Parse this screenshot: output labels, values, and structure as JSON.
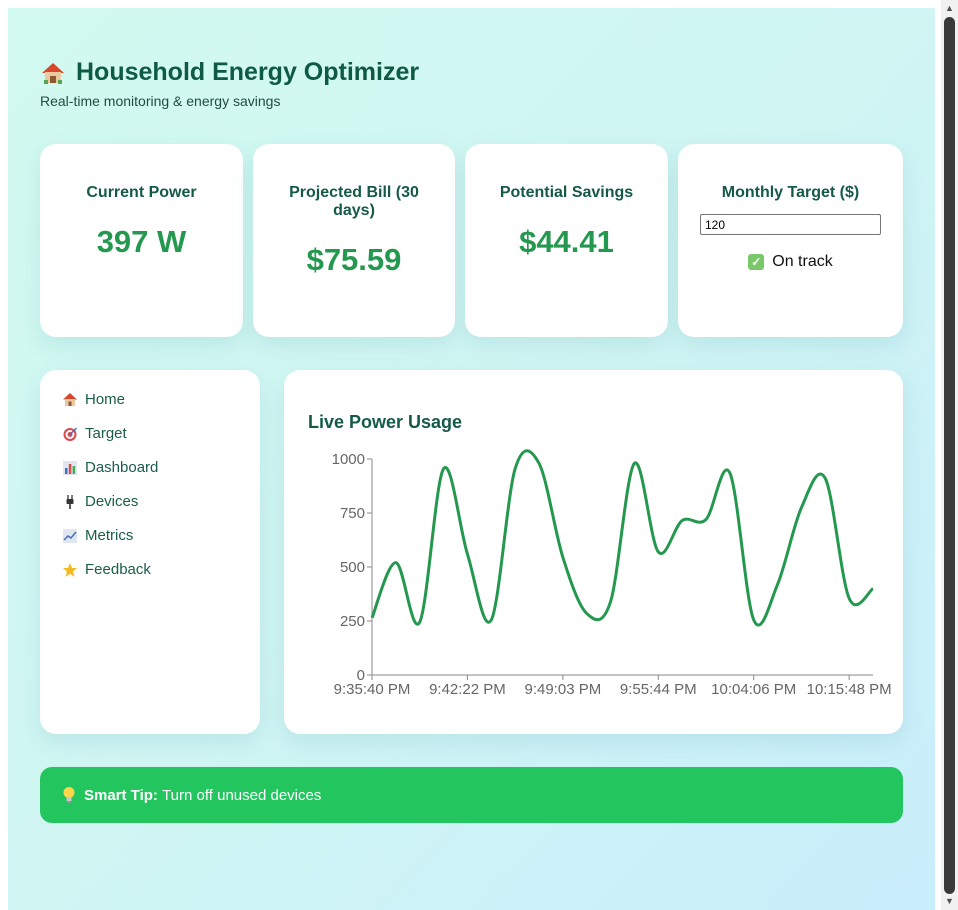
{
  "header": {
    "title": "Household Energy Optimizer",
    "subtitle": "Real-time monitoring & energy savings"
  },
  "stats": {
    "current_power": {
      "label": "Current Power",
      "value": "397 W"
    },
    "projected_bill": {
      "label": "Projected Bill (30 days)",
      "value": "$75.59"
    },
    "potential_savings": {
      "label": "Potential Savings",
      "value": "$44.41"
    },
    "monthly_target": {
      "label": "Monthly Target ($)",
      "value": "120",
      "status": "On track"
    }
  },
  "sidebar": {
    "items": [
      {
        "label": "Home",
        "icon": "house-icon"
      },
      {
        "label": "Target",
        "icon": "target-icon"
      },
      {
        "label": "Dashboard",
        "icon": "bar-chart-icon"
      },
      {
        "label": "Devices",
        "icon": "plug-icon"
      },
      {
        "label": "Metrics",
        "icon": "line-chart-icon"
      },
      {
        "label": "Feedback",
        "icon": "star-icon"
      }
    ]
  },
  "chart_title": "Live Power Usage",
  "chart_data": {
    "type": "line",
    "ylim": [
      0,
      1000
    ],
    "yticks": [
      0,
      250,
      500,
      750,
      1000
    ],
    "xticks": [
      "9:35:40 PM",
      "9:42:22 PM",
      "9:49:03 PM",
      "9:55:44 PM",
      "10:04:06 PM",
      "10:15:48 PM"
    ],
    "series": [
      {
        "values": [
          265,
          520,
          245,
          955,
          560,
          255,
          955,
          980,
          545,
          285,
          340,
          980,
          570,
          715,
          720,
          935,
          255,
          420,
          775,
          910,
          355,
          400
        ]
      }
    ],
    "color": "#25984f"
  },
  "tip": {
    "bold": "Smart Tip:",
    "text": "Turn off unused devices"
  }
}
